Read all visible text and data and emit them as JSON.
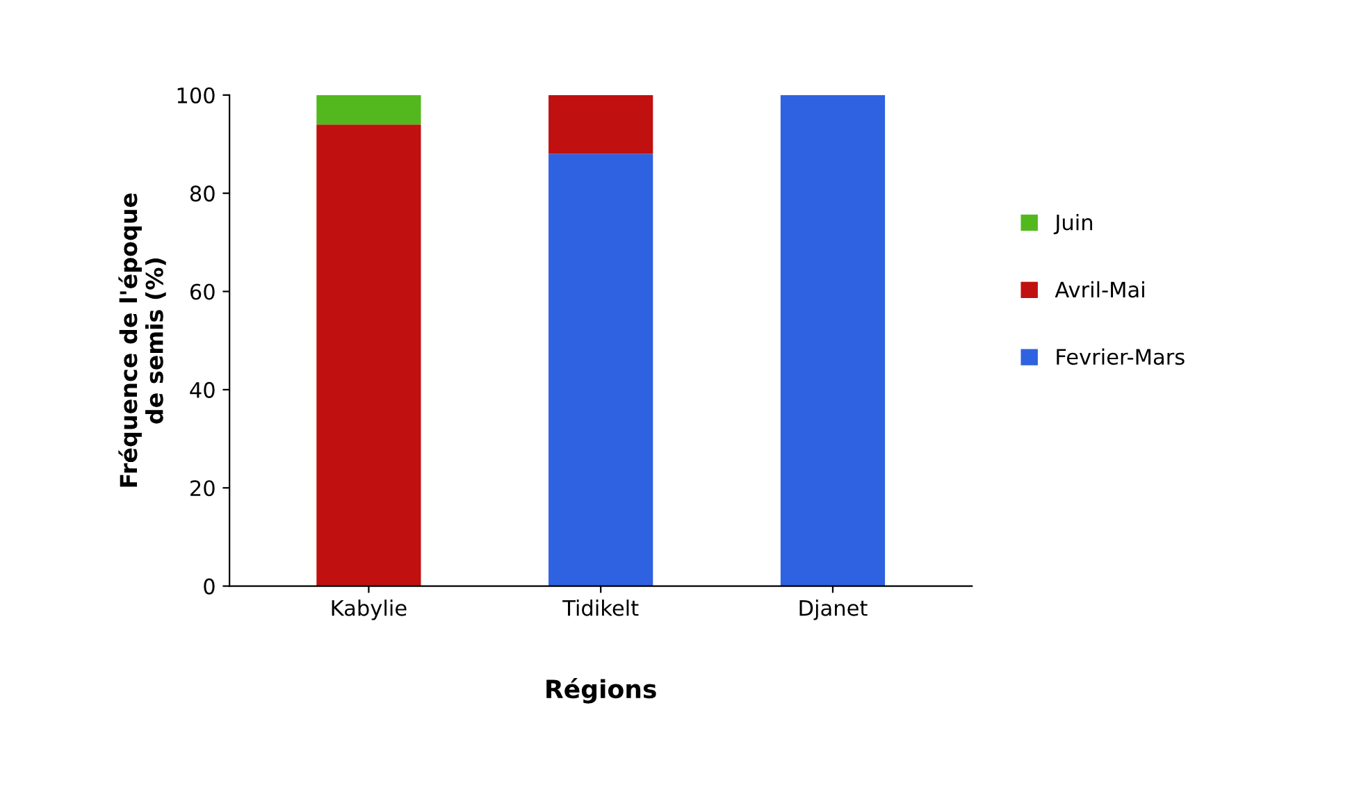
{
  "chart_data": {
    "type": "bar",
    "stacked": true,
    "xlabel": "Régions",
    "ylabel": "Fréquence de l'époque\nde semis (%)",
    "categories": [
      "Kabylie",
      "Tidikelt",
      "Djanet"
    ],
    "series": [
      {
        "name": "Fevrier-Mars",
        "color": "#2f62e0",
        "values": [
          0,
          88,
          100
        ]
      },
      {
        "name": "Avril-Mai",
        "color": "#c01010",
        "values": [
          94,
          12,
          0
        ]
      },
      {
        "name": "Juin",
        "color": "#52b81e",
        "values": [
          6,
          0,
          0
        ]
      }
    ],
    "ylim": [
      0,
      100
    ],
    "yticks": [
      0,
      20,
      40,
      60,
      80,
      100
    ],
    "grid": false,
    "legend": "right"
  }
}
